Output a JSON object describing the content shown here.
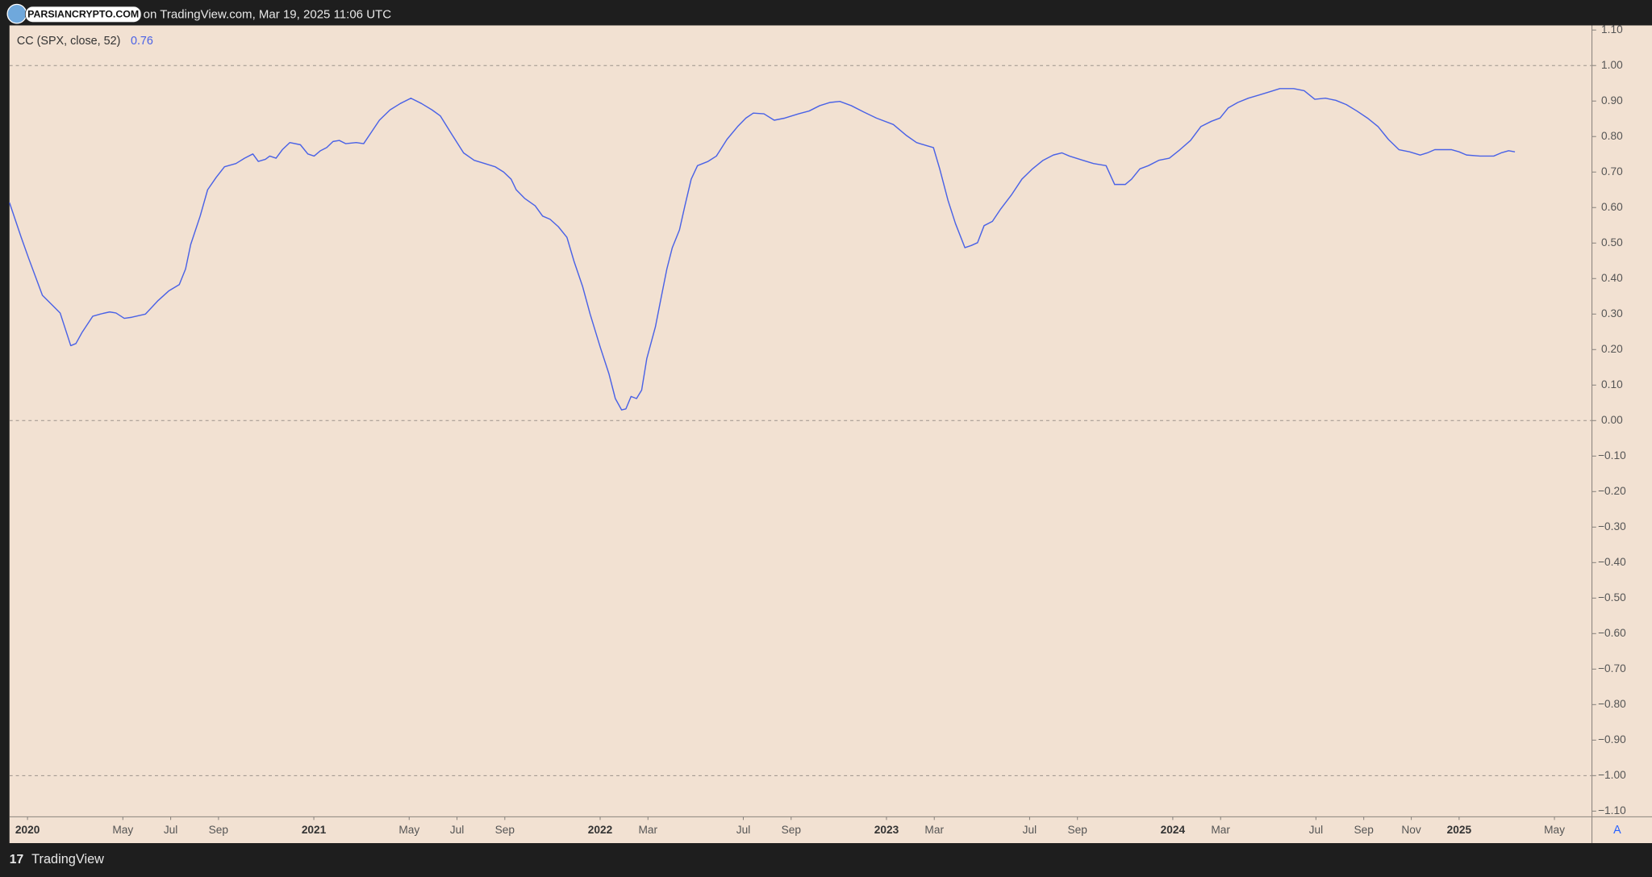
{
  "header": "on TradingView.com, Mar 19, 2025 11:06 UTC",
  "watermark": "PARSIANCRYPTO.COM",
  "footer": "TradingView",
  "scale_button": "A",
  "chart_data": {
    "type": "line",
    "last_value": 0.76,
    "reference_lines": [
      1,
      0,
      -1
    ],
    "xlim": [
      2019.937,
      2025.464
    ],
    "ylim": [
      -1.116,
      1.113
    ],
    "xticks": [
      2020,
      {
        "value": 2020.333,
        "label": "May"
      },
      {
        "value": 2020.5,
        "label": "Jul"
      },
      {
        "value": 2020.667,
        "label": "Sep"
      },
      2021,
      {
        "value": 2021.333,
        "label": "May"
      },
      {
        "value": 2021.5,
        "label": "Jul"
      },
      {
        "value": 2021.667,
        "label": "Sep"
      },
      2022,
      {
        "value": 2022.167,
        "label": "Mar"
      },
      {
        "value": 2022.5,
        "label": "Jul"
      },
      {
        "value": 2022.667,
        "label": "Sep"
      },
      2023,
      {
        "value": 2023.167,
        "label": "Mar"
      },
      {
        "value": 2023.5,
        "label": "Jul"
      },
      {
        "value": 2023.667,
        "label": "Sep"
      },
      2024,
      {
        "value": 2024.167,
        "label": "Mar"
      },
      {
        "value": 2024.5,
        "label": "Jul"
      },
      {
        "value": 2024.667,
        "label": "Sep"
      },
      {
        "value": 2024.833,
        "label": "Nov"
      },
      2025,
      {
        "value": 2025.333,
        "label": "May"
      }
    ],
    "yticks": [
      {
        "value": 1.1,
        "label": "1.10"
      },
      {
        "value": 1.0,
        "label": "1.00"
      },
      {
        "value": 0.9,
        "label": "0.90"
      },
      {
        "value": 0.8,
        "label": "0.80"
      },
      {
        "value": 0.7,
        "label": "0.70"
      },
      {
        "value": 0.6,
        "label": "0.60"
      },
      {
        "value": 0.5,
        "label": "0.50"
      },
      {
        "value": 0.4,
        "label": "0.40"
      },
      {
        "value": 0.3,
        "label": "0.30"
      },
      {
        "value": 0.2,
        "label": "0.20"
      },
      {
        "value": 0.1,
        "label": "0.10"
      },
      {
        "value": 0,
        "label": "0.00"
      },
      {
        "value": -0.1,
        "label": "−0.10"
      },
      {
        "value": -0.2,
        "label": "−0.20"
      },
      {
        "value": -0.3,
        "label": "−0.30"
      },
      {
        "value": -0.4,
        "label": "−0.40"
      },
      {
        "value": -0.5,
        "label": "−0.50"
      },
      {
        "value": -0.6,
        "label": "−0.60"
      },
      {
        "value": -0.7,
        "label": "−0.70"
      },
      {
        "value": -0.8,
        "label": "−0.80"
      },
      {
        "value": -0.9,
        "label": "−0.90"
      },
      {
        "value": -1.0,
        "label": "−1.00"
      },
      {
        "value": -1.1,
        "label": "−1.10"
      }
    ],
    "x": [
      2019.937,
      2019.978,
      2020.004,
      2020.052,
      2020.114,
      2020.151,
      2020.169,
      2020.191,
      2020.228,
      2020.254,
      2020.287,
      2020.309,
      2020.338,
      2020.364,
      2020.412,
      2020.456,
      2020.493,
      2020.53,
      2020.552,
      2020.57,
      2020.603,
      2020.629,
      2020.659,
      2020.688,
      2020.728,
      2020.758,
      2020.787,
      2020.806,
      2020.831,
      2020.846,
      2020.868,
      2020.89,
      2020.916,
      2020.953,
      2020.979,
      2021.001,
      2021.023,
      2021.045,
      2021.067,
      2021.089,
      2021.111,
      2021.148,
      2021.174,
      2021.199,
      2021.229,
      2021.266,
      2021.302,
      2021.339,
      2021.376,
      2021.413,
      2021.442,
      2021.479,
      2021.523,
      2021.56,
      2021.597,
      2021.633,
      2021.663,
      2021.689,
      2021.707,
      2021.736,
      2021.773,
      2021.799,
      2021.825,
      2021.854,
      2021.884,
      2021.909,
      2021.939,
      2021.965,
      2022.001,
      2022.031,
      2022.053,
      2022.075,
      2022.09,
      2022.108,
      2022.127,
      2022.145,
      2022.163,
      2022.193,
      2022.211,
      2022.233,
      2022.252,
      2022.277,
      2022.296,
      2022.318,
      2022.34,
      2022.377,
      2022.406,
      2022.443,
      2022.48,
      2022.509,
      2022.535,
      2022.572,
      2022.608,
      2022.645,
      2022.693,
      2022.73,
      2022.767,
      2022.803,
      2022.837,
      2022.877,
      2022.921,
      2022.965,
      2023.024,
      2023.068,
      2023.105,
      2023.142,
      2023.164,
      2023.186,
      2023.215,
      2023.241,
      2023.274,
      2023.296,
      2023.318,
      2023.341,
      2023.37,
      2023.399,
      2023.436,
      2023.473,
      2023.51,
      2023.547,
      2023.583,
      2023.613,
      2023.639,
      2023.686,
      2023.723,
      2023.767,
      2023.797,
      2023.834,
      2023.856,
      2023.885,
      2023.915,
      2023.951,
      2023.988,
      2024.025,
      2024.062,
      2024.098,
      2024.135,
      2024.165,
      2024.194,
      2024.227,
      2024.264,
      2024.301,
      2024.338,
      2024.374,
      2024.422,
      2024.459,
      2024.496,
      2024.533,
      2024.569,
      2024.606,
      2024.643,
      2024.68,
      2024.717,
      2024.753,
      2024.79,
      2024.827,
      2024.864,
      2024.889,
      2024.915,
      2024.974,
      2025.0,
      2025.026,
      2025.073,
      2025.121,
      2025.147,
      2025.173,
      2025.195
    ],
    "series": [
      {
        "name": "CC (SPX, close, 52)",
        "color": "#4a62e6",
        "values": [
          0.614,
          0.516,
          0.457,
          0.353,
          0.303,
          0.211,
          0.217,
          0.249,
          0.294,
          0.3,
          0.306,
          0.303,
          0.288,
          0.291,
          0.3,
          0.338,
          0.365,
          0.383,
          0.427,
          0.496,
          0.576,
          0.65,
          0.685,
          0.715,
          0.724,
          0.739,
          0.751,
          0.73,
          0.736,
          0.745,
          0.739,
          0.763,
          0.783,
          0.777,
          0.751,
          0.745,
          0.76,
          0.769,
          0.786,
          0.789,
          0.78,
          0.783,
          0.78,
          0.81,
          0.846,
          0.875,
          0.893,
          0.908,
          0.893,
          0.875,
          0.858,
          0.81,
          0.754,
          0.733,
          0.724,
          0.715,
          0.7,
          0.68,
          0.65,
          0.626,
          0.605,
          0.576,
          0.567,
          0.546,
          0.516,
          0.448,
          0.377,
          0.3,
          0.205,
          0.131,
          0.062,
          0.03,
          0.033,
          0.068,
          0.062,
          0.086,
          0.175,
          0.264,
          0.338,
          0.427,
          0.487,
          0.537,
          0.605,
          0.68,
          0.718,
          0.73,
          0.745,
          0.792,
          0.828,
          0.852,
          0.866,
          0.864,
          0.846,
          0.852,
          0.864,
          0.872,
          0.887,
          0.896,
          0.899,
          0.887,
          0.869,
          0.852,
          0.834,
          0.804,
          0.783,
          0.774,
          0.769,
          0.709,
          0.62,
          0.555,
          0.487,
          0.493,
          0.501,
          0.549,
          0.561,
          0.596,
          0.635,
          0.68,
          0.709,
          0.733,
          0.748,
          0.754,
          0.745,
          0.733,
          0.724,
          0.718,
          0.665,
          0.665,
          0.68,
          0.709,
          0.718,
          0.733,
          0.739,
          0.763,
          0.789,
          0.828,
          0.843,
          0.852,
          0.881,
          0.896,
          0.908,
          0.917,
          0.926,
          0.935,
          0.935,
          0.929,
          0.905,
          0.908,
          0.902,
          0.89,
          0.872,
          0.852,
          0.828,
          0.792,
          0.763,
          0.757,
          0.748,
          0.754,
          0.763,
          0.763,
          0.757,
          0.748,
          0.745,
          0.745,
          0.754,
          0.76,
          0.757
        ]
      }
    ]
  }
}
